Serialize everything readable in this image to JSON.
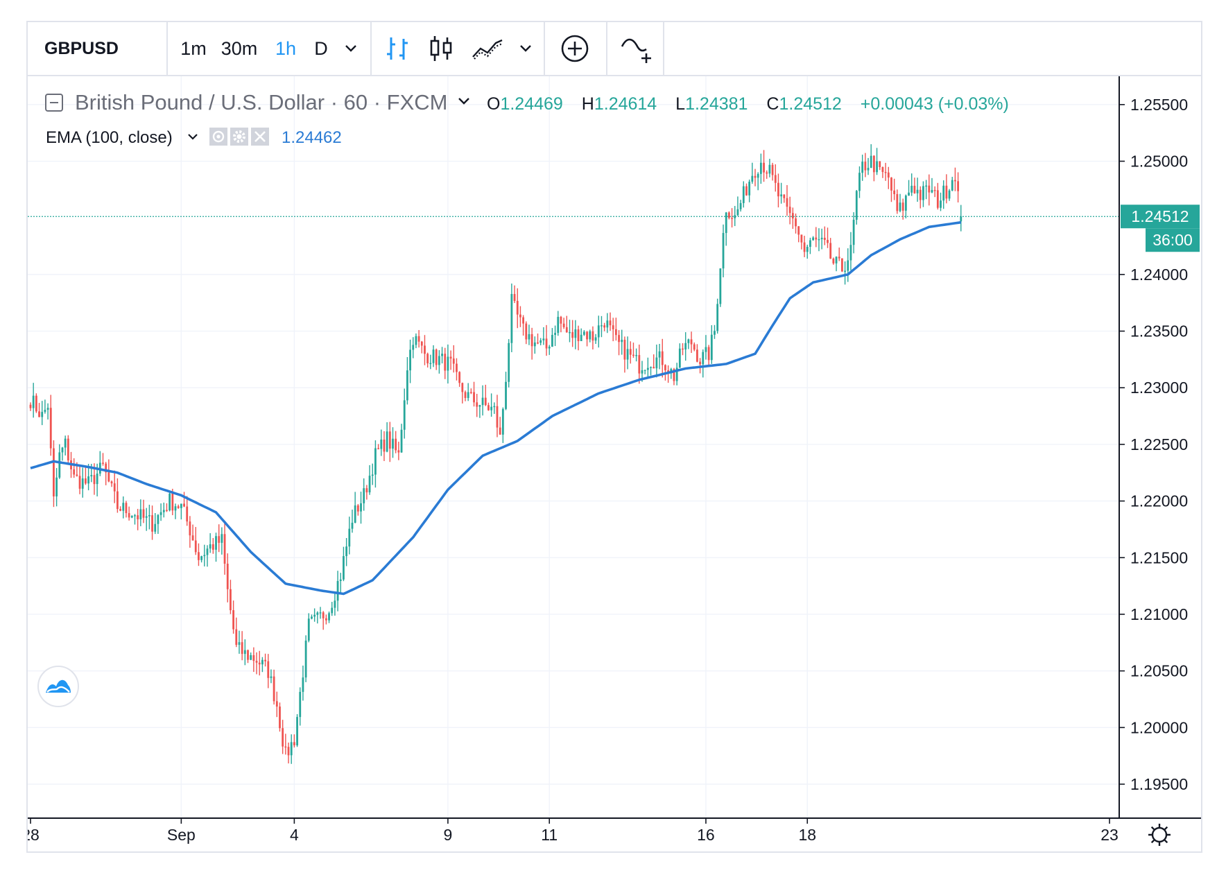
{
  "toolbar": {
    "symbol": "GBPUSD",
    "intervals": [
      "1m",
      "30m",
      "1h",
      "D"
    ],
    "active_interval": "1h",
    "icons": [
      "chevron-down-icon",
      "bar-chart-icon",
      "candlestick-icon",
      "area-chart-icon",
      "chevron-down-icon",
      "add-compare-icon",
      "indicators-icon"
    ]
  },
  "legend": {
    "title": "British Pound / U.S. Dollar · 60 · FXCM",
    "o_label": "O",
    "o_value": "1.24469",
    "h_label": "H",
    "h_value": "1.24614",
    "l_label": "L",
    "l_value": "1.24381",
    "c_label": "C",
    "c_value": "1.24512",
    "change": "+0.00043 (+0.03%)",
    "ema_label": "EMA (100, close)",
    "ema_value": "1.24462"
  },
  "price_badge": {
    "value": "1.24512",
    "countdown": "36:00"
  },
  "colors": {
    "up": "#26a69a",
    "down": "#ef5350",
    "ema": "#2a7bd4",
    "grid": "#f0f3fa",
    "text": "#131722",
    "badge": "#26a69a"
  },
  "chart_data": {
    "type": "candlestick",
    "symbol": "GBPUSD",
    "timeframe": "60",
    "ylim": [
      1.192,
      1.2575
    ],
    "y_ticks": [
      "1.25500",
      "1.25000",
      "1.24000",
      "1.23500",
      "1.23000",
      "1.22500",
      "1.22000",
      "1.21500",
      "1.21000",
      "1.20500",
      "1.20000",
      "1.19500"
    ],
    "x_tick_labels": [
      "28",
      "Sep",
      "4",
      "9",
      "11",
      "16",
      "18",
      "23"
    ],
    "anchors": [
      [
        0,
        1.229
      ],
      [
        4,
        1.2275
      ],
      [
        6,
        1.2285
      ],
      [
        8,
        1.22
      ],
      [
        10,
        1.224
      ],
      [
        12,
        1.225
      ],
      [
        15,
        1.222
      ],
      [
        20,
        1.2215
      ],
      [
        25,
        1.223
      ],
      [
        30,
        1.2195
      ],
      [
        35,
        1.219
      ],
      [
        42,
        1.218
      ],
      [
        48,
        1.22
      ],
      [
        52,
        1.2195
      ],
      [
        55,
        1.2175
      ],
      [
        58,
        1.215
      ],
      [
        62,
        1.216
      ],
      [
        66,
        1.2165
      ],
      [
        68,
        1.212
      ],
      [
        71,
        1.207
      ],
      [
        74,
        1.2065
      ],
      [
        78,
        1.206
      ],
      [
        82,
        1.205
      ],
      [
        85,
        1.202
      ],
      [
        88,
        1.1975
      ],
      [
        91,
        1.199
      ],
      [
        93,
        1.203
      ],
      [
        96,
        1.209
      ],
      [
        99,
        1.2095
      ],
      [
        103,
        1.2105
      ],
      [
        107,
        1.2135
      ],
      [
        111,
        1.2185
      ],
      [
        115,
        1.2205
      ],
      [
        119,
        1.224
      ],
      [
        123,
        1.2255
      ],
      [
        127,
        1.224
      ],
      [
        130,
        1.232
      ],
      [
        132,
        1.2345
      ],
      [
        136,
        1.233
      ],
      [
        141,
        1.2325
      ],
      [
        145,
        1.232
      ],
      [
        148,
        1.23
      ],
      [
        152,
        1.229
      ],
      [
        156,
        1.2285
      ],
      [
        160,
        1.228
      ],
      [
        162,
        1.2255
      ],
      [
        164,
        1.231
      ],
      [
        166,
        1.2375
      ],
      [
        170,
        1.235
      ],
      [
        174,
        1.234
      ],
      [
        178,
        1.2335
      ],
      [
        182,
        1.236
      ],
      [
        186,
        1.2345
      ],
      [
        190,
        1.235
      ],
      [
        194,
        1.2345
      ],
      [
        198,
        1.236
      ],
      [
        202,
        1.234
      ],
      [
        206,
        1.233
      ],
      [
        210,
        1.232
      ],
      [
        214,
        1.2325
      ],
      [
        218,
        1.2325
      ],
      [
        222,
        1.231
      ],
      [
        225,
        1.2335
      ],
      [
        228,
        1.234
      ],
      [
        231,
        1.2325
      ],
      [
        234,
        1.233
      ],
      [
        236,
        1.235
      ],
      [
        238,
        1.241
      ],
      [
        240,
        1.246
      ],
      [
        243,
        1.245
      ],
      [
        246,
        1.247
      ],
      [
        249,
        1.249
      ],
      [
        252,
        1.25
      ],
      [
        255,
        1.249
      ],
      [
        258,
        1.247
      ],
      [
        261,
        1.2455
      ],
      [
        264,
        1.2445
      ],
      [
        267,
        1.242
      ],
      [
        270,
        1.243
      ],
      [
        274,
        1.2425
      ],
      [
        277,
        1.241
      ],
      [
        280,
        1.2405
      ],
      [
        283,
        1.242
      ],
      [
        285,
        1.247
      ],
      [
        287,
        1.2495
      ],
      [
        290,
        1.25
      ],
      [
        293,
        1.249
      ],
      [
        296,
        1.2485
      ],
      [
        299,
        1.2455
      ],
      [
        301,
        1.246
      ],
      [
        304,
        1.248
      ],
      [
        307,
        1.247
      ],
      [
        310,
        1.2475
      ],
      [
        313,
        1.2465
      ],
      [
        316,
        1.2475
      ],
      [
        319,
        1.249
      ],
      [
        321,
        1.2451
      ]
    ],
    "ema": [
      [
        0,
        1.2229
      ],
      [
        8,
        1.2235
      ],
      [
        20,
        1.223
      ],
      [
        30,
        1.2225
      ],
      [
        40,
        1.2215
      ],
      [
        52,
        1.2205
      ],
      [
        64,
        1.219
      ],
      [
        76,
        1.2155
      ],
      [
        88,
        1.2127
      ],
      [
        100,
        1.2121
      ],
      [
        108,
        1.2118
      ],
      [
        118,
        1.213
      ],
      [
        132,
        1.2168
      ],
      [
        144,
        1.221
      ],
      [
        156,
        1.224
      ],
      [
        168,
        1.2253
      ],
      [
        180,
        1.2275
      ],
      [
        196,
        1.2295
      ],
      [
        210,
        1.2307
      ],
      [
        226,
        1.2317
      ],
      [
        240,
        1.2321
      ],
      [
        250,
        1.233
      ],
      [
        256,
        1.2355
      ],
      [
        262,
        1.2379
      ],
      [
        270,
        1.2393
      ],
      [
        282,
        1.24
      ],
      [
        290,
        1.2417
      ],
      [
        300,
        1.2431
      ],
      [
        310,
        1.2442
      ],
      [
        321,
        1.2446
      ]
    ],
    "last": {
      "open": 1.24469,
      "high": 1.24614,
      "low": 1.24381,
      "close": 1.24512,
      "ema": 1.24462
    }
  }
}
